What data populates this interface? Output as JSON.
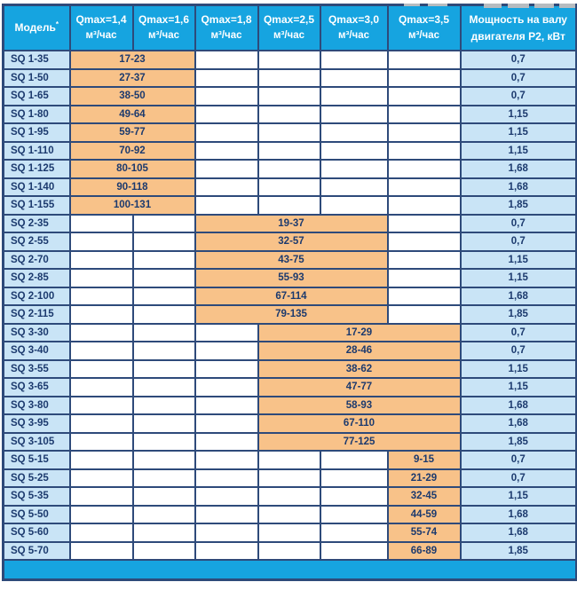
{
  "colors": {
    "header_bg": "#16a4e0",
    "header_text": "#ffffff",
    "cell_blue": "#c9e4f6",
    "cell_orange": "#f8c289",
    "border": "#2e4a7a",
    "text": "#1c3a6e",
    "bottom_bar": "#16a4e0"
  },
  "table": {
    "model_header": {
      "label": "Модель",
      "note": "*"
    },
    "q_columns": [
      {
        "qmax": "Qmax=1,4",
        "unit": "м³/час"
      },
      {
        "qmax": "Qmax=1,6",
        "unit": "м³/час"
      },
      {
        "qmax": "Qmax=1,8",
        "unit": "м³/час"
      },
      {
        "qmax": "Qmax=2,5",
        "unit": "м³/час"
      },
      {
        "qmax": "Qmax=3,0",
        "unit": "м³/час"
      },
      {
        "qmax": "Qmax=3,5",
        "unit": "м³/час"
      }
    ],
    "power_header": {
      "line1": "Мощность на валу",
      "line2": "двигателя P2, кВт"
    },
    "rows": [
      {
        "model": "SQ 1-35",
        "range": "17-23",
        "start": 1,
        "span": 2,
        "power": "0,7"
      },
      {
        "model": "SQ 1-50",
        "range": "27-37",
        "start": 1,
        "span": 2,
        "power": "0,7"
      },
      {
        "model": "SQ 1-65",
        "range": "38-50",
        "start": 1,
        "span": 2,
        "power": "0,7"
      },
      {
        "model": "SQ 1-80",
        "range": "49-64",
        "start": 1,
        "span": 2,
        "power": "1,15"
      },
      {
        "model": "SQ 1-95",
        "range": "59-77",
        "start": 1,
        "span": 2,
        "power": "1,15"
      },
      {
        "model": "SQ 1-110",
        "range": "70-92",
        "start": 1,
        "span": 2,
        "power": "1,15"
      },
      {
        "model": "SQ 1-125",
        "range": "80-105",
        "start": 1,
        "span": 2,
        "power": "1,68"
      },
      {
        "model": "SQ 1-140",
        "range": "90-118",
        "start": 1,
        "span": 2,
        "power": "1,68"
      },
      {
        "model": "SQ 1-155",
        "range": "100-131",
        "start": 1,
        "span": 2,
        "power": "1,85"
      },
      {
        "model": "SQ 2-35",
        "range": "19-37",
        "start": 3,
        "span": 3,
        "power": "0,7"
      },
      {
        "model": "SQ 2-55",
        "range": "32-57",
        "start": 3,
        "span": 3,
        "power": "0,7"
      },
      {
        "model": "SQ 2-70",
        "range": "43-75",
        "start": 3,
        "span": 3,
        "power": "1,15"
      },
      {
        "model": "SQ 2-85",
        "range": "55-93",
        "start": 3,
        "span": 3,
        "power": "1,15"
      },
      {
        "model": "SQ 2-100",
        "range": "67-114",
        "start": 3,
        "span": 3,
        "power": "1,68"
      },
      {
        "model": "SQ 2-115",
        "range": "79-135",
        "start": 3,
        "span": 3,
        "power": "1,85"
      },
      {
        "model": "SQ 3-30",
        "range": "17-29",
        "start": 4,
        "span": 3,
        "power": "0,7"
      },
      {
        "model": "SQ 3-40",
        "range": "28-46",
        "start": 4,
        "span": 3,
        "power": "0,7"
      },
      {
        "model": "SQ 3-55",
        "range": "38-62",
        "start": 4,
        "span": 3,
        "power": "1,15"
      },
      {
        "model": "SQ 3-65",
        "range": "47-77",
        "start": 4,
        "span": 3,
        "power": "1,15"
      },
      {
        "model": "SQ 3-80",
        "range": "58-93",
        "start": 4,
        "span": 3,
        "power": "1,68"
      },
      {
        "model": "SQ 3-95",
        "range": "67-110",
        "start": 4,
        "span": 3,
        "power": "1,68"
      },
      {
        "model": "SQ 3-105",
        "range": "77-125",
        "start": 4,
        "span": 3,
        "power": "1,85"
      },
      {
        "model": "SQ 5-15",
        "range": "9-15",
        "start": 6,
        "span": 1,
        "power": "0,7"
      },
      {
        "model": "SQ 5-25",
        "range": "21-29",
        "start": 6,
        "span": 1,
        "power": "0,7"
      },
      {
        "model": "SQ 5-35",
        "range": "32-45",
        "start": 6,
        "span": 1,
        "power": "1,15"
      },
      {
        "model": "SQ 5-50",
        "range": "44-59",
        "start": 6,
        "span": 1,
        "power": "1,68"
      },
      {
        "model": "SQ 5-60",
        "range": "55-74",
        "start": 6,
        "span": 1,
        "power": "1,68"
      },
      {
        "model": "SQ 5-70",
        "range": "66-89",
        "start": 6,
        "span": 1,
        "power": "1,85"
      }
    ]
  }
}
